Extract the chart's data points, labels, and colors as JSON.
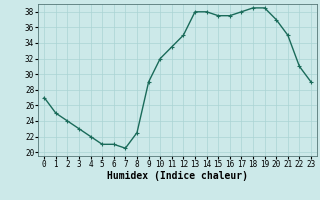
{
  "x": [
    0,
    1,
    2,
    3,
    4,
    5,
    6,
    7,
    8,
    9,
    10,
    11,
    12,
    13,
    14,
    15,
    16,
    17,
    18,
    19,
    20,
    21,
    22,
    23
  ],
  "y": [
    27,
    25,
    24,
    23,
    22,
    21,
    21,
    20.5,
    22.5,
    29,
    32,
    33.5,
    35,
    38,
    38,
    37.5,
    37.5,
    38,
    38.5,
    38.5,
    37,
    35,
    31,
    29
  ],
  "line_color": "#1a6b5a",
  "marker": "+",
  "marker_size": 3,
  "bg_color": "#cce9e9",
  "grid_color": "#aad4d4",
  "xlabel": "Humidex (Indice chaleur)",
  "xlim": [
    -0.5,
    23.5
  ],
  "ylim": [
    19.5,
    39
  ],
  "yticks": [
    20,
    22,
    24,
    26,
    28,
    30,
    32,
    34,
    36,
    38
  ],
  "xticks": [
    0,
    1,
    2,
    3,
    4,
    5,
    6,
    7,
    8,
    9,
    10,
    11,
    12,
    13,
    14,
    15,
    16,
    17,
    18,
    19,
    20,
    21,
    22,
    23
  ],
  "tick_fontsize": 5.5,
  "label_fontsize": 7,
  "line_width": 1.0
}
